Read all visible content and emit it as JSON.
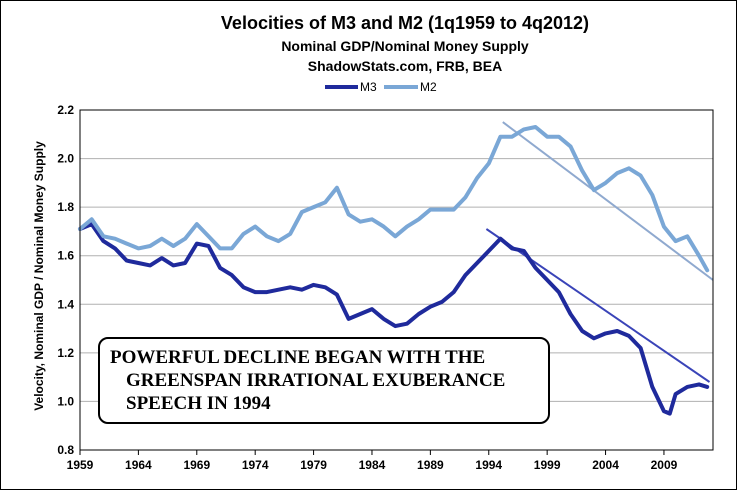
{
  "chart_data": {
    "type": "line",
    "title": "Velocities of M3 and M2 (1q1959 to 4q2012)",
    "subtitle_1": "Nominal GDP/Nominal Money Supply",
    "subtitle_2": "ShadowStats.com, FRB, BEA",
    "ylabel": "Velocity, Nominal GDP / Nominal Money Supply",
    "xlabel": "",
    "xlim": [
      1959,
      2013.2
    ],
    "ylim": [
      0.8,
      2.2
    ],
    "x_ticks": [
      1959,
      1964,
      1969,
      1974,
      1979,
      1984,
      1989,
      1994,
      1999,
      2004,
      2009
    ],
    "x_tick_labels": [
      "1959",
      "1964",
      "1969",
      "1974",
      "1979",
      "1984",
      "1989",
      "1994",
      "1999",
      "2004",
      "2009"
    ],
    "y_ticks": [
      0.8,
      1.0,
      1.2,
      1.4,
      1.6,
      1.8,
      2.0,
      2.2
    ],
    "y_tick_labels": [
      "0.8",
      "1.0",
      "1.2",
      "1.4",
      "1.6",
      "1.8",
      "2.0",
      "2.2"
    ],
    "legend": [
      "M3",
      "M2"
    ],
    "colors": {
      "M3": "#1f2a9c",
      "M2": "#7aa7d6",
      "trend_M3": "#3a44b8",
      "trend_M2": "#8fa9cf",
      "grid": "#b0b0b0"
    },
    "series": [
      {
        "name": "M3",
        "x": [
          1959,
          1960,
          1961,
          1962,
          1963,
          1964,
          1965,
          1966,
          1967,
          1968,
          1969,
          1970,
          1971,
          1972,
          1973,
          1974,
          1975,
          1976,
          1977,
          1978,
          1979,
          1980,
          1981,
          1982,
          1983,
          1984,
          1985,
          1986,
          1987,
          1988,
          1989,
          1990,
          1991,
          1992,
          1993,
          1994,
          1995,
          1996,
          1997,
          1998,
          1999,
          2000,
          2001,
          2002,
          2003,
          2004,
          2005,
          2006,
          2007,
          2008,
          2009,
          2009.5,
          2010,
          2011,
          2012,
          2012.7
        ],
        "values": [
          1.71,
          1.73,
          1.66,
          1.63,
          1.58,
          1.57,
          1.56,
          1.59,
          1.56,
          1.57,
          1.65,
          1.64,
          1.55,
          1.52,
          1.47,
          1.45,
          1.45,
          1.46,
          1.47,
          1.46,
          1.48,
          1.47,
          1.44,
          1.34,
          1.36,
          1.38,
          1.34,
          1.31,
          1.32,
          1.36,
          1.39,
          1.41,
          1.45,
          1.52,
          1.57,
          1.62,
          1.67,
          1.63,
          1.62,
          1.55,
          1.5,
          1.45,
          1.36,
          1.29,
          1.26,
          1.28,
          1.29,
          1.27,
          1.22,
          1.06,
          0.96,
          0.95,
          1.03,
          1.06,
          1.07,
          1.06
        ]
      },
      {
        "name": "M2",
        "x": [
          1959,
          1960,
          1961,
          1962,
          1963,
          1964,
          1965,
          1966,
          1967,
          1968,
          1969,
          1970,
          1971,
          1972,
          1973,
          1974,
          1975,
          1976,
          1977,
          1978,
          1979,
          1980,
          1981,
          1982,
          1983,
          1984,
          1985,
          1986,
          1987,
          1988,
          1989,
          1990,
          1991,
          1992,
          1993,
          1994,
          1995,
          1996,
          1997,
          1998,
          1999,
          2000,
          2001,
          2002,
          2003,
          2004,
          2005,
          2006,
          2007,
          2008,
          2009,
          2010,
          2011,
          2012,
          2012.7
        ],
        "values": [
          1.71,
          1.75,
          1.68,
          1.67,
          1.65,
          1.63,
          1.64,
          1.67,
          1.64,
          1.67,
          1.73,
          1.68,
          1.63,
          1.63,
          1.69,
          1.72,
          1.68,
          1.66,
          1.69,
          1.78,
          1.8,
          1.82,
          1.88,
          1.77,
          1.74,
          1.75,
          1.72,
          1.68,
          1.72,
          1.75,
          1.79,
          1.79,
          1.79,
          1.84,
          1.92,
          1.98,
          2.09,
          2.09,
          2.12,
          2.13,
          2.09,
          2.09,
          2.05,
          1.95,
          1.87,
          1.9,
          1.94,
          1.96,
          1.93,
          1.85,
          1.72,
          1.66,
          1.68,
          1.6,
          1.54
        ]
      }
    ],
    "trendlines": [
      {
        "name": "M2 trend",
        "x": [
          1995.2,
          2013.2
        ],
        "values": [
          2.15,
          1.5
        ]
      },
      {
        "name": "M3 trend",
        "x": [
          1993.8,
          2012.9
        ],
        "values": [
          1.71,
          1.08
        ]
      }
    ],
    "annotation_lines": [
      "POWERFUL DECLINE BEGAN WITH THE",
      "GREENSPAN IRRATIONAL EXUBERANCE",
      "SPEECH IN 1994"
    ]
  }
}
